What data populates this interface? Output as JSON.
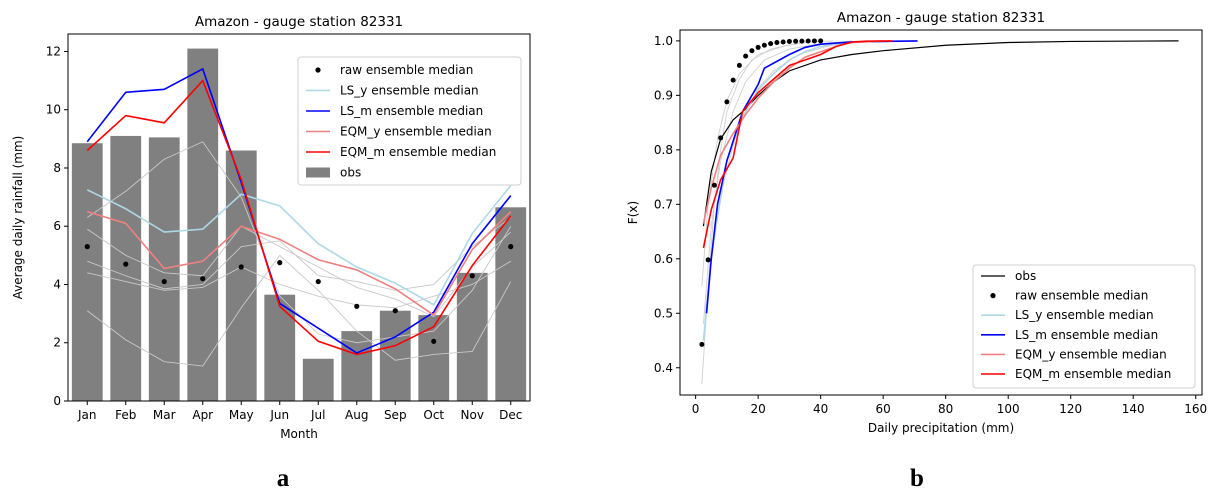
{
  "chart_data": [
    {
      "type": "bar",
      "title": "Amazon - gauge station 82331",
      "xlabel": "Month",
      "ylabel": "Average daily rainfall (mm)",
      "ylim": [
        0,
        12.6
      ],
      "yticks": [
        0,
        2,
        4,
        6,
        8,
        10,
        12
      ],
      "categories": [
        "Jan",
        "Feb",
        "Mar",
        "Apr",
        "May",
        "Jun",
        "Jul",
        "Aug",
        "Sep",
        "Oct",
        "Nov",
        "Dec"
      ],
      "legend_position": "top-right",
      "series": [
        {
          "name": "obs",
          "kind": "bar",
          "color": "#808080",
          "values": [
            8.85,
            9.1,
            9.05,
            12.1,
            8.6,
            3.65,
            1.45,
            2.4,
            3.1,
            2.95,
            4.4,
            6.65
          ]
        },
        {
          "name": "raw ensemble median",
          "kind": "points",
          "color": "#000000",
          "values": [
            5.3,
            4.7,
            4.1,
            4.2,
            4.6,
            4.75,
            4.1,
            3.25,
            3.1,
            2.05,
            4.3,
            5.3
          ]
        },
        {
          "name": "LS_y ensemble median",
          "kind": "line",
          "color": "#add8e6",
          "values": [
            7.25,
            6.6,
            5.8,
            5.9,
            7.1,
            6.7,
            5.4,
            4.6,
            4.05,
            3.3,
            5.75,
            7.4
          ]
        },
        {
          "name": "LS_m ensemble median",
          "kind": "line",
          "color": "#0000ff",
          "values": [
            8.9,
            10.6,
            10.7,
            11.4,
            7.5,
            3.35,
            2.5,
            1.65,
            2.2,
            3.05,
            5.4,
            7.05
          ]
        },
        {
          "name": "EQM_y ensemble median",
          "kind": "line",
          "color": "#f08080",
          "values": [
            6.5,
            6.1,
            4.55,
            4.8,
            6.0,
            5.55,
            4.85,
            4.5,
            3.85,
            2.95,
            5.2,
            6.5
          ]
        },
        {
          "name": "EQM_m ensemble median",
          "kind": "line",
          "color": "#ff0000",
          "values": [
            8.6,
            9.8,
            9.55,
            11.0,
            7.6,
            3.25,
            2.05,
            1.6,
            1.9,
            2.55,
            4.65,
            6.35
          ]
        }
      ],
      "background_members": [
        {
          "values": [
            5.9,
            5.0,
            4.4,
            4.3,
            6.0,
            5.3,
            4.6,
            3.9,
            3.5,
            2.9,
            4.6,
            5.8
          ]
        },
        {
          "values": [
            4.8,
            4.3,
            3.85,
            4.0,
            5.3,
            5.5,
            4.3,
            4.1,
            3.8,
            4.0,
            5.3,
            6.3
          ]
        },
        {
          "values": [
            4.4,
            4.1,
            3.8,
            3.9,
            4.6,
            4.0,
            3.6,
            3.3,
            3.2,
            3.6,
            4.0,
            4.8
          ]
        },
        {
          "values": [
            6.3,
            7.2,
            8.3,
            8.9,
            7.0,
            3.6,
            2.3,
            2.0,
            2.2,
            2.4,
            3.8,
            6.0
          ]
        },
        {
          "values": [
            3.1,
            2.1,
            1.35,
            1.2,
            3.2,
            5.0,
            3.8,
            2.4,
            1.4,
            1.6,
            1.7,
            4.1
          ]
        }
      ]
    },
    {
      "type": "line",
      "title": "Amazon - gauge station 82331",
      "xlabel": "Daily precipitation (mm)",
      "ylabel": "F(x)",
      "xlim": [
        -5,
        162
      ],
      "ylim": [
        0.35,
        1.02
      ],
      "xticks": [
        0,
        20,
        40,
        60,
        80,
        100,
        120,
        140,
        160
      ],
      "yticks": [
        0.4,
        0.5,
        0.6,
        0.7,
        0.8,
        0.9,
        1.0
      ],
      "legend_position": "bottom-right",
      "series": [
        {
          "name": "obs",
          "kind": "line",
          "color": "#000000",
          "points": [
            [
              2.5,
              0.66
            ],
            [
              5,
              0.76
            ],
            [
              8,
              0.82
            ],
            [
              12,
              0.855
            ],
            [
              16,
              0.875
            ],
            [
              20,
              0.9
            ],
            [
              25,
              0.925
            ],
            [
              30,
              0.945
            ],
            [
              40,
              0.965
            ],
            [
              50,
              0.975
            ],
            [
              60,
              0.982
            ],
            [
              80,
              0.992
            ],
            [
              100,
              0.997
            ],
            [
              120,
              0.999
            ],
            [
              154.5,
              1.0
            ]
          ]
        },
        {
          "name": "raw ensemble median",
          "kind": "points",
          "color": "#000000",
          "points": [
            [
              2,
              0.443
            ],
            [
              4,
              0.598
            ],
            [
              6,
              0.735
            ],
            [
              8,
              0.822
            ],
            [
              10,
              0.888
            ],
            [
              12,
              0.928
            ],
            [
              14,
              0.955
            ],
            [
              16,
              0.972
            ],
            [
              18,
              0.982
            ],
            [
              20,
              0.988
            ],
            [
              22,
              0.992
            ],
            [
              24,
              0.995
            ],
            [
              26,
              0.997
            ],
            [
              28,
              0.998
            ],
            [
              30,
              0.999
            ],
            [
              32,
              0.9993
            ],
            [
              34,
              0.9996
            ],
            [
              36,
              0.9998
            ],
            [
              38,
              0.9999
            ],
            [
              40,
              1.0
            ]
          ]
        },
        {
          "name": "LS_y ensemble median",
          "kind": "line",
          "color": "#add8e6",
          "points": [
            [
              2.5,
              0.45
            ],
            [
              5,
              0.6
            ],
            [
              7.5,
              0.7
            ],
            [
              10,
              0.78
            ],
            [
              15,
              0.86
            ],
            [
              20,
              0.91
            ],
            [
              25,
              0.94
            ],
            [
              30,
              0.965
            ],
            [
              35,
              0.98
            ],
            [
              40,
              0.99
            ],
            [
              48,
              0.997
            ],
            [
              55,
              1.0
            ]
          ]
        },
        {
          "name": "LS_m ensemble median",
          "kind": "line",
          "color": "#0000ff",
          "points": [
            [
              3.5,
              0.5
            ],
            [
              5,
              0.6
            ],
            [
              7,
              0.7
            ],
            [
              10,
              0.78
            ],
            [
              15,
              0.87
            ],
            [
              20,
              0.92
            ],
            [
              22,
              0.95
            ],
            [
              30,
              0.975
            ],
            [
              35,
              0.988
            ],
            [
              40,
              0.994
            ],
            [
              50,
              0.998
            ],
            [
              60,
              0.999
            ],
            [
              71,
              1.0
            ]
          ]
        },
        {
          "name": "EQM_y ensemble median",
          "kind": "line",
          "color": "#f08080",
          "points": [
            [
              2.5,
              0.665
            ],
            [
              5,
              0.73
            ],
            [
              8,
              0.79
            ],
            [
              12,
              0.83
            ],
            [
              16,
              0.865
            ],
            [
              20,
              0.895
            ],
            [
              25,
              0.925
            ],
            [
              30,
              0.95
            ],
            [
              35,
              0.97
            ],
            [
              40,
              0.98
            ],
            [
              45,
              0.99
            ],
            [
              50,
              0.997
            ],
            [
              60,
              1.0
            ]
          ]
        },
        {
          "name": "EQM_m ensemble median",
          "kind": "line",
          "color": "#ff0000",
          "points": [
            [
              2.5,
              0.62
            ],
            [
              5,
              0.69
            ],
            [
              8,
              0.745
            ],
            [
              12,
              0.785
            ],
            [
              15,
              0.87
            ],
            [
              20,
              0.905
            ],
            [
              25,
              0.93
            ],
            [
              30,
              0.955
            ],
            [
              35,
              0.965
            ],
            [
              40,
              0.975
            ],
            [
              45,
              0.99
            ],
            [
              50,
              0.998
            ],
            [
              55,
              0.9995
            ],
            [
              63,
              1.0
            ]
          ]
        }
      ],
      "background_members": [
        {
          "points": [
            [
              2,
              0.37
            ],
            [
              4,
              0.55
            ],
            [
              6,
              0.7
            ],
            [
              8,
              0.8
            ],
            [
              10,
              0.87
            ],
            [
              14,
              0.93
            ],
            [
              18,
              0.965
            ],
            [
              24,
              0.985
            ],
            [
              32,
              0.995
            ],
            [
              40,
              1.0
            ]
          ]
        },
        {
          "points": [
            [
              2.5,
              0.48
            ],
            [
              5,
              0.66
            ],
            [
              8,
              0.78
            ],
            [
              12,
              0.87
            ],
            [
              16,
              0.925
            ],
            [
              22,
              0.965
            ],
            [
              30,
              0.985
            ],
            [
              40,
              0.995
            ],
            [
              50,
              1.0
            ]
          ]
        },
        {
          "points": [
            [
              2,
              0.55
            ],
            [
              4,
              0.7
            ],
            [
              7,
              0.82
            ],
            [
              10,
              0.89
            ],
            [
              14,
              0.94
            ],
            [
              20,
              0.975
            ],
            [
              28,
              0.99
            ],
            [
              36,
              0.998
            ],
            [
              44,
              1.0
            ]
          ]
        },
        {
          "points": [
            [
              3,
              0.5
            ],
            [
              6,
              0.64
            ],
            [
              9,
              0.74
            ],
            [
              13,
              0.83
            ],
            [
              18,
              0.9
            ],
            [
              25,
              0.945
            ],
            [
              33,
              0.975
            ],
            [
              42,
              0.99
            ],
            [
              52,
              1.0
            ]
          ]
        }
      ]
    }
  ],
  "panel_labels": {
    "a": "a",
    "b": "b"
  }
}
